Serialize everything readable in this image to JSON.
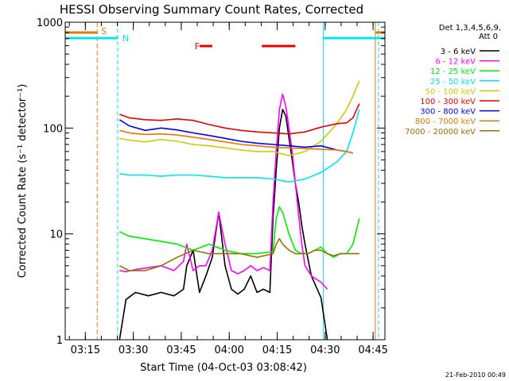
{
  "chart_data": {
    "type": "line",
    "title": "HESSI Observing Summary Count Rates, Corrected",
    "xlabel": "Start Time (04-Oct-03 03:08:42)",
    "ylabel": "Corrected Count Rate (s⁻¹ detector⁻¹)",
    "yscale": "log",
    "ylim": [
      1,
      1000
    ],
    "xlim_minutes": [
      0,
      100
    ],
    "x_ticks": [
      {
        "label": "03:15",
        "minute": 6.3
      },
      {
        "label": "03:30",
        "minute": 21.3
      },
      {
        "label": "03:45",
        "minute": 36.3
      },
      {
        "label": "04:00",
        "minute": 51.3
      },
      {
        "label": "04:15",
        "minute": 66.3
      },
      {
        "label": "04:30",
        "minute": 81.3
      },
      {
        "label": "04:45",
        "minute": 96.3
      }
    ],
    "y_ticks": [
      {
        "label": "1",
        "value": 1
      },
      {
        "label": "10",
        "value": 10
      },
      {
        "label": "100",
        "value": 100
      },
      {
        "label": "1000",
        "value": 1000
      }
    ],
    "legend": {
      "header": [
        "Det 1,3,4,5,6,9,",
        "Att 0"
      ],
      "position": "right"
    },
    "series": [
      {
        "name": "3 - 6 keV",
        "color": "#000000",
        "x": [
          17,
          19,
          22,
          26,
          30,
          34,
          37,
          38,
          40,
          42,
          44,
          46,
          48,
          50,
          52,
          54,
          56,
          58,
          60,
          62,
          64,
          65,
          66,
          67,
          68,
          69,
          70,
          71,
          72,
          73,
          74,
          75,
          77,
          80,
          82
        ],
        "y": [
          1,
          2.4,
          2.8,
          2.6,
          2.8,
          2.6,
          3,
          5,
          7,
          2.8,
          4,
          6,
          16,
          5,
          3,
          2.7,
          3,
          4,
          2.8,
          3,
          2.8,
          14,
          40,
          100,
          150,
          130,
          80,
          50,
          30,
          20,
          12,
          8,
          4,
          2.5,
          1
        ]
      },
      {
        "name": "6 - 12 keV",
        "color": "#ff00ff",
        "x": [
          17,
          19,
          22,
          26,
          30,
          34,
          37,
          38,
          40,
          42,
          44,
          46,
          48,
          50,
          52,
          54,
          56,
          58,
          60,
          62,
          64,
          65,
          66,
          67,
          68,
          69,
          70,
          71,
          72,
          73,
          74,
          75,
          77,
          80,
          82
        ],
        "y": [
          4.5,
          4.4,
          4.6,
          4.8,
          5,
          4.5,
          5.5,
          8,
          4.5,
          5,
          5,
          7,
          16,
          8,
          4.5,
          4.2,
          4.5,
          5,
          4.5,
          4.8,
          4.5,
          20,
          60,
          150,
          210,
          160,
          100,
          60,
          30,
          15,
          8,
          5,
          4,
          3.5,
          3
        ]
      },
      {
        "name": "12 - 25 keV",
        "color": "#00ee00",
        "x": [
          17,
          20,
          25,
          30,
          35,
          40,
          45,
          50,
          55,
          60,
          65,
          66,
          67,
          68,
          70,
          72,
          74,
          76,
          78,
          80,
          82,
          84,
          86,
          88,
          90,
          92
        ],
        "y": [
          10.5,
          9.5,
          9,
          8.5,
          8,
          7,
          8,
          7,
          6.5,
          6.5,
          6.8,
          14,
          18,
          16,
          10,
          7,
          6.5,
          6.5,
          7,
          7.5,
          6.5,
          6,
          6.5,
          6.5,
          8,
          14
        ]
      },
      {
        "name": "25 - 50 keV",
        "color": "#00e5ee",
        "x": [
          17,
          20,
          25,
          30,
          35,
          40,
          45,
          50,
          55,
          60,
          65,
          70,
          75,
          80,
          85,
          88,
          90,
          92
        ],
        "y": [
          37,
          36,
          36,
          35,
          36,
          36,
          35,
          34,
          34,
          34,
          33,
          31,
          33,
          38,
          48,
          60,
          90,
          150
        ]
      },
      {
        "name": "50 - 100 keV",
        "color": "#cccc00",
        "x": [
          17,
          20,
          25,
          30,
          35,
          40,
          45,
          50,
          55,
          60,
          65,
          70,
          75,
          80,
          85,
          88,
          90,
          92
        ],
        "y": [
          80,
          77,
          74,
          78,
          75,
          70,
          68,
          65,
          62,
          60,
          60,
          55,
          60,
          75,
          110,
          150,
          200,
          280
        ]
      },
      {
        "name": "100 - 300 keV",
        "color": "#ee0000",
        "x": [
          17,
          20,
          25,
          30,
          35,
          40,
          45,
          50,
          55,
          60,
          65,
          70,
          75,
          80,
          85,
          88,
          90,
          92
        ],
        "y": [
          135,
          125,
          120,
          118,
          122,
          118,
          108,
          100,
          95,
          92,
          90,
          88,
          92,
          102,
          110,
          112,
          125,
          170
        ]
      },
      {
        "name": "300 - 800 keV",
        "color": "#0000ee",
        "x": [
          17,
          20,
          25,
          30,
          35,
          40,
          45,
          50,
          55,
          60,
          65,
          70,
          75,
          80,
          85,
          88,
          90
        ],
        "y": [
          120,
          105,
          95,
          100,
          96,
          90,
          85,
          80,
          75,
          72,
          70,
          68,
          66,
          68,
          62,
          60,
          58
        ]
      },
      {
        "name": "800 - 7000 keV",
        "color": "#ee7600",
        "x": [
          17,
          20,
          25,
          30,
          35,
          40,
          45,
          50,
          55,
          60,
          65,
          70,
          75,
          80,
          85,
          88,
          90
        ],
        "y": [
          95,
          90,
          87,
          88,
          86,
          82,
          78,
          74,
          70,
          68,
          66,
          65,
          64,
          63,
          62,
          60,
          58
        ]
      },
      {
        "name": "7000 - 20000 keV",
        "color": "#8b7500",
        "x": [
          17,
          20,
          25,
          30,
          35,
          40,
          45,
          50,
          55,
          60,
          65,
          66,
          67,
          68,
          70,
          72,
          74,
          76,
          78,
          80,
          82,
          84,
          86,
          88,
          90,
          92
        ],
        "y": [
          5,
          4.5,
          4.5,
          5,
          6,
          7,
          6.5,
          6.5,
          6.5,
          6,
          6.5,
          8,
          9,
          8,
          7,
          6.5,
          6.5,
          6.5,
          7,
          7,
          6.5,
          6.2,
          6.5,
          6.5,
          6.5,
          6.5
        ]
      }
    ],
    "markers": {
      "saa": {
        "label": "S",
        "color": "#ee7600",
        "minutes": [
          10,
          97
        ]
      },
      "night": {
        "label": "N",
        "color": "#00e5ee",
        "minutes": [
          16.4,
          80.7,
          98
        ]
      },
      "flare": {
        "label": "F",
        "color": "#ee0000"
      }
    },
    "footer": "21-Feb-2010 00:49"
  }
}
